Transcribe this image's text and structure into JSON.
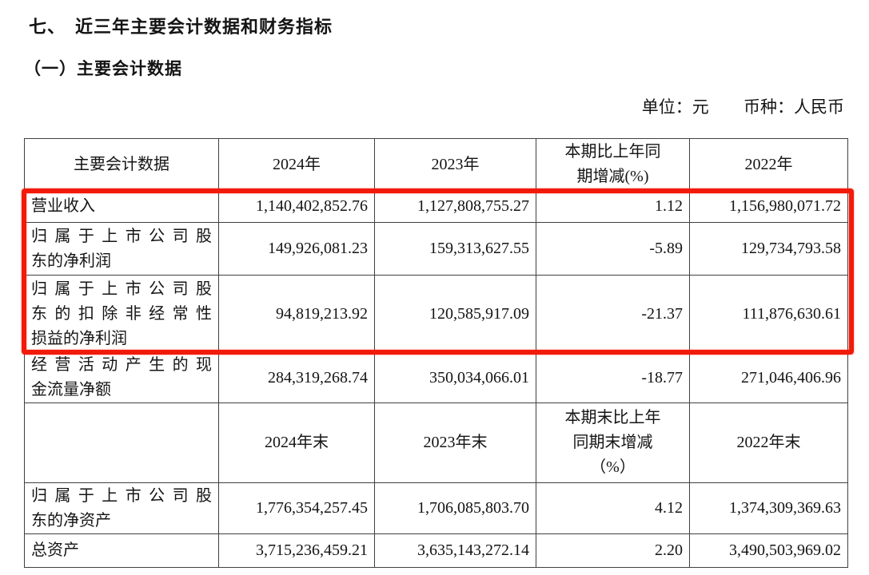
{
  "document": {
    "section_title": "七、　近三年主要会计数据和财务指标",
    "subsection_title": "（一）主要会计数据",
    "unit_note": "单位：元",
    "currency_note": "币种：人民币"
  },
  "table": {
    "columns": [
      "主要会计数据",
      "2024年",
      "2023年",
      "本期比上年同\n期增减(%)",
      "2022年"
    ],
    "body_rows": [
      {
        "label": "营业收入",
        "v2024": "1,140,402,852.76",
        "v2023": "1,127,808,755.27",
        "change": "1.12",
        "v2022": "1,156,980,071.72"
      },
      {
        "label": "归属于上市公司股\n东的净利润",
        "v2024": "149,926,081.23",
        "v2023": "159,313,627.55",
        "change": "-5.89",
        "v2022": "129,734,793.58"
      },
      {
        "label": "归属于上市公司股\n东的扣除非经常性\n损益的净利润",
        "v2024": "94,819,213.92",
        "v2023": "120,585,917.09",
        "change": "-21.37",
        "v2022": "111,876,630.61"
      },
      {
        "label": "经营活动产生的现\n金流量净额",
        "v2024": "284,319,268.74",
        "v2023": "350,034,066.01",
        "change": "-18.77",
        "v2022": "271,046,406.96"
      }
    ],
    "period_end_header": [
      "",
      "2024年末",
      "2023年末",
      "本期末比上年\n同期末增减\n（%）",
      "2022年末"
    ],
    "period_end_rows": [
      {
        "label": "归属于上市公司股\n东的净资产",
        "v2024": "1,776,354,257.45",
        "v2023": "1,706,085,803.70",
        "change": "4.12",
        "v2022": "1,374,309,369.63"
      },
      {
        "label": "总资产",
        "v2024": "3,715,236,459.21",
        "v2023": "3,635,143,272.14",
        "change": "2.20",
        "v2022": "3,490,503,969.02"
      }
    ],
    "highlight_color": "#f21a0a"
  }
}
